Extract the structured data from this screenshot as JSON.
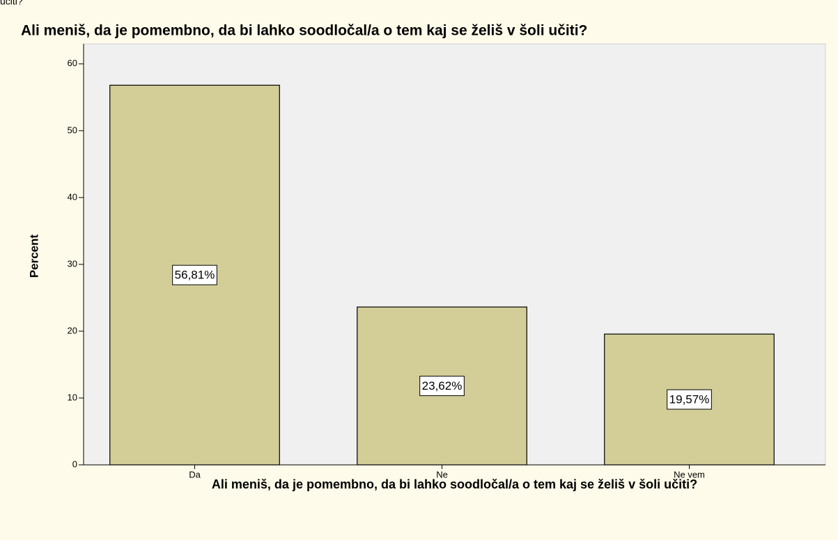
{
  "caption": "učiti?",
  "chart_data": {
    "type": "bar",
    "title": "Ali meniš, da je pomembno, da bi lahko soodločal/a o tem kaj se želiš v šoli učiti?",
    "xlabel": "Ali meniš, da je pomembno, da bi lahko soodločal/a o tem kaj se želiš v šoli učiti?",
    "ylabel": "Percent",
    "categories": [
      "Da",
      "Ne",
      "Ne vem"
    ],
    "values": [
      56.81,
      23.62,
      19.57
    ],
    "value_labels": [
      "56,81%",
      "23,62%",
      "19,57%"
    ],
    "color": "#d3ce97",
    "ylim": [
      0,
      63
    ],
    "yticks": [
      0,
      10,
      20,
      30,
      40,
      50,
      60
    ]
  }
}
